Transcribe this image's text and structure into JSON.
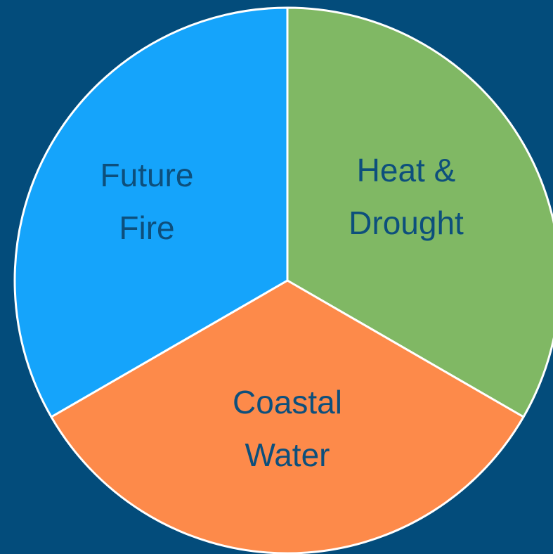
{
  "background_color": "#034c7b",
  "outline_color": "#ffffff",
  "label_color": "#0d4f7c",
  "segments": [
    {
      "lines": [
        "Heat &",
        "Drought"
      ],
      "color": "#80b864"
    },
    {
      "lines": [
        "Coastal",
        "Water"
      ],
      "color": "#fd8a4a"
    },
    {
      "lines": [
        "Future",
        "Fire"
      ],
      "color": "#15a4fb"
    }
  ]
}
